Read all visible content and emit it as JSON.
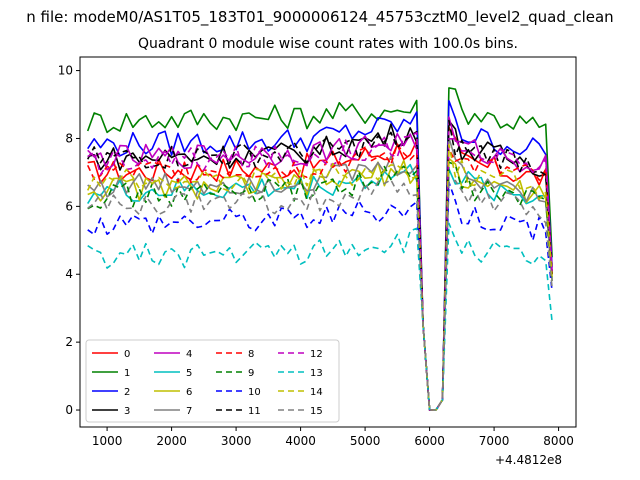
{
  "suptitle": "n file: modeM0/AS1T05_183T01_9000006124_45753cztM0_level2_quad_clean",
  "chart_data": {
    "type": "line",
    "title": "Quadrant 0 module wise count rates with 100.0s bins.",
    "xlabel": "",
    "ylabel": "",
    "x_offset_label": "+4.4812e8",
    "xlim": [
      580,
      8270
    ],
    "ylim": [
      -0.5,
      10.4
    ],
    "xticks": [
      1000,
      2000,
      3000,
      4000,
      5000,
      6000,
      7000,
      8000
    ],
    "yticks": [
      0,
      2,
      4,
      6,
      8,
      10
    ],
    "grid": false,
    "legend_position": "lower-left",
    "x_start": 700,
    "x_step": 100,
    "x_end": 7900,
    "gap": {
      "bins": [
        5900,
        6000,
        6100,
        6200
      ],
      "values": [
        2.5,
        0.0,
        0.0,
        0.3
      ]
    },
    "series": [
      {
        "name": "0",
        "color": "#ff0000",
        "dash": "solid",
        "base": 7.0,
        "pre_peak": 7.8,
        "peak": 8.1,
        "end": 4.0
      },
      {
        "name": "1",
        "color": "#008000",
        "dash": "solid",
        "base": 8.5,
        "pre_peak": 8.9,
        "peak": 9.8,
        "end": 4.5
      },
      {
        "name": "2",
        "color": "#0000ff",
        "dash": "solid",
        "base": 7.8,
        "pre_peak": 8.5,
        "peak": 9.2,
        "end": 4.2
      },
      {
        "name": "3",
        "color": "#000000",
        "dash": "solid",
        "base": 7.4,
        "pre_peak": 8.3,
        "peak": 8.4,
        "end": 4.0
      },
      {
        "name": "4",
        "color": "#bf00bf",
        "dash": "solid",
        "base": 7.4,
        "pre_peak": 8.0,
        "peak": 8.3,
        "end": 4.0
      },
      {
        "name": "5",
        "color": "#00bfbf",
        "dash": "solid",
        "base": 6.4,
        "pre_peak": 7.0,
        "peak": 7.3,
        "end": 3.8
      },
      {
        "name": "6",
        "color": "#bfbf00",
        "dash": "solid",
        "base": 6.5,
        "pre_peak": 7.1,
        "peak": 7.4,
        "end": 3.8
      },
      {
        "name": "7",
        "color": "#808080",
        "dash": "solid",
        "base": 6.6,
        "pre_peak": 7.3,
        "peak": 7.8,
        "end": 3.8
      },
      {
        "name": "8",
        "color": "#ff0000",
        "dash": "dashed",
        "base": 7.0,
        "pre_peak": 7.6,
        "peak": 8.0,
        "end": 4.0
      },
      {
        "name": "9",
        "color": "#008000",
        "dash": "dashed",
        "base": 6.3,
        "pre_peak": 7.0,
        "peak": 7.4,
        "end": 3.8
      },
      {
        "name": "10",
        "color": "#0000ff",
        "dash": "dashed",
        "base": 5.5,
        "pre_peak": 6.0,
        "peak": 6.6,
        "end": 3.5
      },
      {
        "name": "11",
        "color": "#000000",
        "dash": "dashed",
        "base": 7.4,
        "pre_peak": 8.0,
        "peak": 8.2,
        "end": 4.0
      },
      {
        "name": "12",
        "color": "#bf00bf",
        "dash": "dashed",
        "base": 7.3,
        "pre_peak": 7.9,
        "peak": 8.2,
        "end": 4.0
      },
      {
        "name": "13",
        "color": "#00bfbf",
        "dash": "dashed",
        "base": 4.5,
        "pre_peak": 5.0,
        "peak": 5.5,
        "end": 2.6
      },
      {
        "name": "14",
        "color": "#bfbf00",
        "dash": "dashed",
        "base": 6.7,
        "pre_peak": 7.2,
        "peak": 7.6,
        "end": 3.9
      },
      {
        "name": "15",
        "color": "#808080",
        "dash": "dashed",
        "base": 6.0,
        "pre_peak": 6.6,
        "peak": 7.0,
        "end": 3.6
      }
    ]
  }
}
